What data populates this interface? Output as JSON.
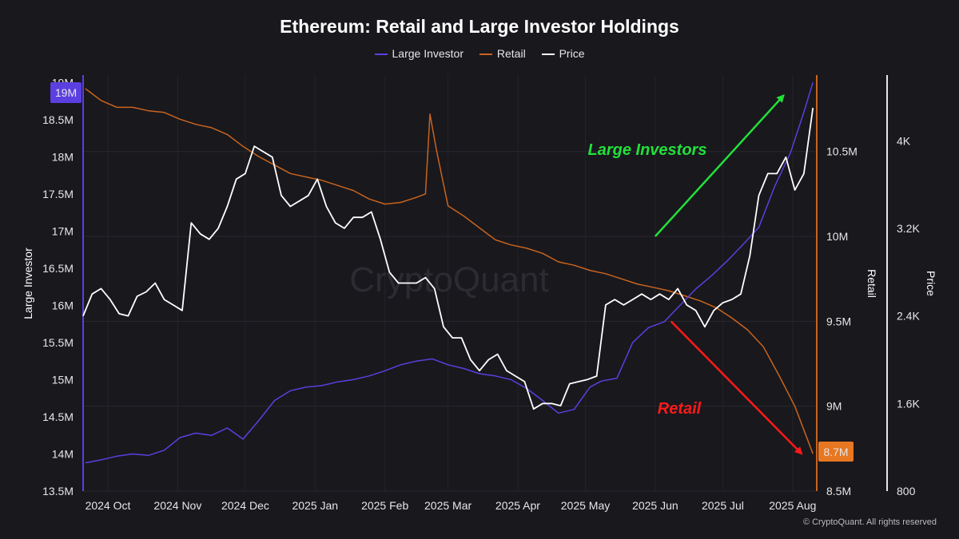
{
  "page": {
    "background": "#19181d",
    "watermark": "CryptoQuant",
    "copyright": "© CryptoQuant. All rights reserved"
  },
  "chart_data": {
    "type": "line",
    "title": "Ethereum: Retail and Large Investor Holdings",
    "legend_placement": "top-center",
    "grid": true,
    "x_tick_labels": [
      "2024 Oct",
      "2024 Nov",
      "2024 Dec",
      "2025 Jan",
      "2025 Feb",
      "2025 Mar",
      "2025 Apr",
      "2025 May",
      "2025 Jun",
      "2025 Jul",
      "2025 Aug"
    ],
    "x_tick_dates": [
      "2024-10-01",
      "2024-11-01",
      "2024-12-01",
      "2025-01-01",
      "2025-02-01",
      "2025-03-01",
      "2025-04-01",
      "2025-05-01",
      "2025-06-01",
      "2025-07-01",
      "2025-08-01"
    ],
    "xlim": [
      "2024-09-20",
      "2025-08-11"
    ],
    "axes": {
      "left": {
        "label": "Large Investor",
        "ticks": [
          "13.5M",
          "14M",
          "14.5M",
          "15M",
          "15.5M",
          "16M",
          "16.5M",
          "17M",
          "17.5M",
          "18M",
          "18.5M",
          "19M"
        ],
        "tick_values": [
          13.5,
          14,
          14.5,
          15,
          15.5,
          16,
          16.5,
          17,
          17.5,
          18,
          18.5,
          19
        ],
        "ylim": [
          13.5,
          19.1
        ],
        "units": "M",
        "color": "#5b3fe0"
      },
      "middle": {
        "label": "Retail",
        "ticks": [
          "8.5M",
          "9M",
          "9.5M",
          "10M",
          "10.5M"
        ],
        "tick_values": [
          8.5,
          9,
          9.5,
          10,
          10.5
        ],
        "ylim": [
          8.5,
          10.95
        ],
        "units": "M",
        "color": "#c8641e"
      },
      "right": {
        "label": "Price",
        "ticks": [
          "800",
          "1.6K",
          "2.4K",
          "3.2K",
          "4K"
        ],
        "tick_values": [
          800,
          1600,
          2400,
          3200,
          4000
        ],
        "ylim": [
          800,
          4600
        ]
      }
    },
    "end_badges": [
      {
        "series": "Large Investor",
        "text": "19M",
        "color": "#5b3fe0"
      },
      {
        "series": "Retail",
        "text": "8.7M",
        "color": "#e87722"
      }
    ],
    "annotations": [
      {
        "text": "Large Investors",
        "color": "#22e03a",
        "arrow_from": [
          "2025-06-01",
          10.0
        ],
        "arrow_to": [
          "2025-07-28",
          10.83
        ],
        "arrow_axis": "Retail"
      },
      {
        "text": "Retail",
        "color": "#ff1a1a",
        "arrow_from": [
          "2025-06-08",
          9.5
        ],
        "arrow_to": [
          "2025-08-05",
          8.72
        ],
        "arrow_axis": "Retail"
      }
    ],
    "series": [
      {
        "name": "Large Investor",
        "axis": "left",
        "color": "#5b3fe0",
        "x": [
          "2024-09-21",
          "2024-09-28",
          "2024-10-05",
          "2024-10-12",
          "2024-10-19",
          "2024-10-26",
          "2024-11-02",
          "2024-11-09",
          "2024-11-16",
          "2024-11-23",
          "2024-11-30",
          "2024-12-07",
          "2024-12-14",
          "2024-12-21",
          "2024-12-28",
          "2025-01-04",
          "2025-01-11",
          "2025-01-18",
          "2025-01-25",
          "2025-02-01",
          "2025-02-08",
          "2025-02-15",
          "2025-02-22",
          "2025-03-01",
          "2025-03-08",
          "2025-03-15",
          "2025-03-22",
          "2025-03-29",
          "2025-04-05",
          "2025-04-12",
          "2025-04-19",
          "2025-04-26",
          "2025-05-03",
          "2025-05-08",
          "2025-05-15",
          "2025-05-22",
          "2025-05-29",
          "2025-06-05",
          "2025-06-12",
          "2025-06-19",
          "2025-06-26",
          "2025-07-03",
          "2025-07-10",
          "2025-07-17",
          "2025-07-24",
          "2025-07-31",
          "2025-08-06",
          "2025-08-10"
        ],
        "values": [
          13.88,
          13.92,
          13.97,
          14.0,
          13.98,
          14.05,
          14.22,
          14.28,
          14.25,
          14.35,
          14.2,
          14.45,
          14.72,
          14.85,
          14.9,
          14.92,
          14.97,
          15.0,
          15.05,
          15.12,
          15.2,
          15.25,
          15.28,
          15.2,
          15.15,
          15.08,
          15.05,
          15.0,
          14.88,
          14.72,
          14.55,
          14.6,
          14.9,
          14.98,
          15.02,
          15.5,
          15.7,
          15.78,
          16.0,
          16.22,
          16.4,
          16.6,
          16.82,
          17.05,
          17.6,
          18.05,
          18.6,
          19.0
        ]
      },
      {
        "name": "Retail",
        "axis": "middle",
        "color": "#c8641e",
        "x": [
          "2024-09-21",
          "2024-09-28",
          "2024-10-05",
          "2024-10-12",
          "2024-10-19",
          "2024-10-26",
          "2024-11-02",
          "2024-11-09",
          "2024-11-16",
          "2024-11-23",
          "2024-11-30",
          "2024-12-07",
          "2024-12-14",
          "2024-12-21",
          "2024-12-28",
          "2025-01-04",
          "2025-01-11",
          "2025-01-18",
          "2025-01-25",
          "2025-02-01",
          "2025-02-08",
          "2025-02-15",
          "2025-02-19",
          "2025-02-21",
          "2025-02-24",
          "2025-03-01",
          "2025-03-08",
          "2025-03-15",
          "2025-03-22",
          "2025-03-29",
          "2025-04-05",
          "2025-04-12",
          "2025-04-19",
          "2025-04-26",
          "2025-05-03",
          "2025-05-10",
          "2025-05-17",
          "2025-05-24",
          "2025-05-31",
          "2025-06-07",
          "2025-06-14",
          "2025-06-21",
          "2025-06-28",
          "2025-07-05",
          "2025-07-12",
          "2025-07-19",
          "2025-07-26",
          "2025-08-02",
          "2025-08-10"
        ],
        "values": [
          10.87,
          10.8,
          10.76,
          10.76,
          10.74,
          10.73,
          10.69,
          10.66,
          10.64,
          10.6,
          10.53,
          10.47,
          10.42,
          10.37,
          10.35,
          10.33,
          10.3,
          10.27,
          10.22,
          10.19,
          10.2,
          10.23,
          10.25,
          10.72,
          10.5,
          10.18,
          10.12,
          10.05,
          9.98,
          9.95,
          9.93,
          9.9,
          9.85,
          9.83,
          9.8,
          9.78,
          9.75,
          9.72,
          9.7,
          9.68,
          9.65,
          9.62,
          9.58,
          9.52,
          9.45,
          9.35,
          9.18,
          9.0,
          8.72
        ]
      },
      {
        "name": "Price",
        "axis": "right",
        "color": "#ffffff",
        "x": [
          "2024-09-20",
          "2024-09-24",
          "2024-09-28",
          "2024-10-02",
          "2024-10-06",
          "2024-10-10",
          "2024-10-14",
          "2024-10-18",
          "2024-10-22",
          "2024-10-26",
          "2024-10-30",
          "2024-11-03",
          "2024-11-07",
          "2024-11-11",
          "2024-11-15",
          "2024-11-19",
          "2024-11-23",
          "2024-11-27",
          "2024-12-01",
          "2024-12-05",
          "2024-12-09",
          "2024-12-13",
          "2024-12-17",
          "2024-12-21",
          "2024-12-25",
          "2024-12-29",
          "2025-01-02",
          "2025-01-06",
          "2025-01-10",
          "2025-01-14",
          "2025-01-18",
          "2025-01-22",
          "2025-01-26",
          "2025-01-30",
          "2025-02-03",
          "2025-02-07",
          "2025-02-11",
          "2025-02-15",
          "2025-02-19",
          "2025-02-23",
          "2025-02-27",
          "2025-03-03",
          "2025-03-07",
          "2025-03-11",
          "2025-03-15",
          "2025-03-19",
          "2025-03-23",
          "2025-03-27",
          "2025-03-31",
          "2025-04-04",
          "2025-04-08",
          "2025-04-12",
          "2025-04-16",
          "2025-04-20",
          "2025-04-24",
          "2025-04-28",
          "2025-05-02",
          "2025-05-06",
          "2025-05-10",
          "2025-05-14",
          "2025-05-18",
          "2025-05-22",
          "2025-05-26",
          "2025-05-30",
          "2025-06-03",
          "2025-06-07",
          "2025-06-11",
          "2025-06-15",
          "2025-06-19",
          "2025-06-23",
          "2025-06-27",
          "2025-07-01",
          "2025-07-05",
          "2025-07-09",
          "2025-07-13",
          "2025-07-17",
          "2025-07-21",
          "2025-07-25",
          "2025-07-29",
          "2025-08-02",
          "2025-08-06",
          "2025-08-10"
        ],
        "values": [
          2400,
          2600,
          2650,
          2550,
          2420,
          2400,
          2580,
          2620,
          2700,
          2550,
          2500,
          2450,
          3250,
          3150,
          3100,
          3200,
          3400,
          3650,
          3700,
          3950,
          3900,
          3850,
          3500,
          3400,
          3450,
          3500,
          3650,
          3400,
          3250,
          3200,
          3300,
          3300,
          3350,
          3100,
          2800,
          2700,
          2700,
          2700,
          2750,
          2650,
          2300,
          2200,
          2200,
          2000,
          1900,
          2000,
          2050,
          1900,
          1850,
          1800,
          1550,
          1600,
          1600,
          1580,
          1780,
          1800,
          1820,
          1850,
          2500,
          2550,
          2500,
          2550,
          2600,
          2550,
          2600,
          2550,
          2650,
          2500,
          2450,
          2300,
          2450,
          2520,
          2550,
          2600,
          2950,
          3500,
          3700,
          3700,
          3850,
          3550,
          3700,
          4300
        ]
      }
    ]
  }
}
